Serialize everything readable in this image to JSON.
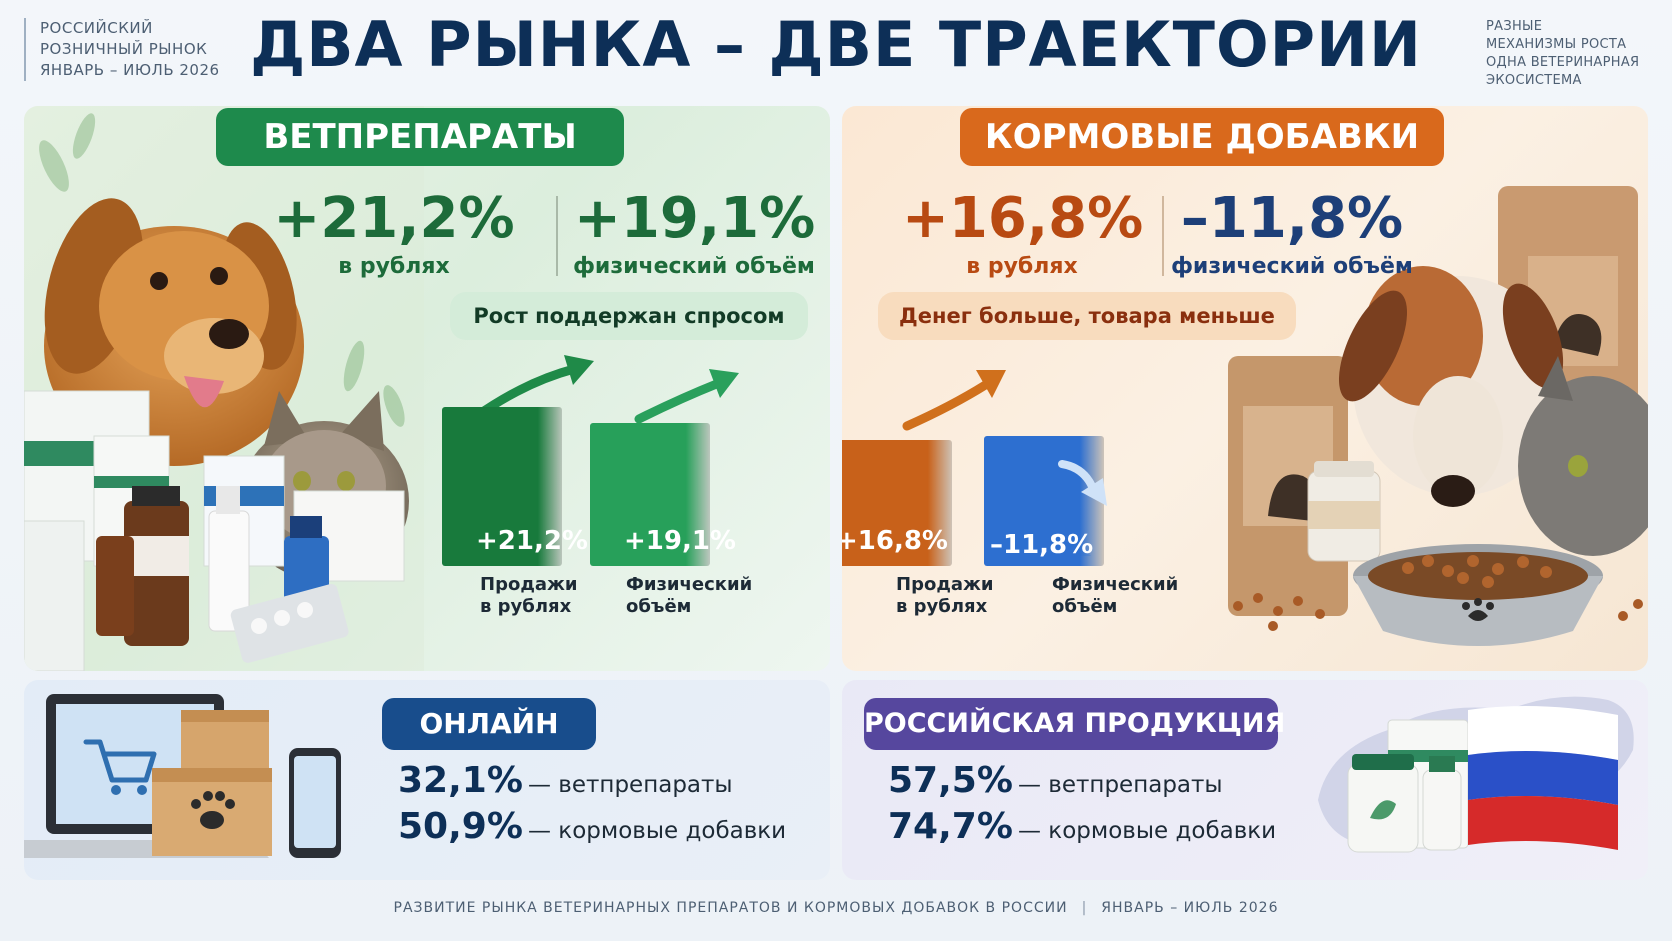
{
  "header": {
    "left_lines": [
      "РОССИЙСКИЙ",
      "РОЗНИЧНЫЙ РЫНОК",
      "ЯНВАРЬ – ИЮЛЬ 2026"
    ],
    "title": "ДВА РЫНКА – ДВЕ ТРАЕКТОРИИ",
    "right_lines": [
      "РАЗНЫЕ",
      "МЕХАНИЗМЫ РОСТА",
      "ОДНА ВЕТЕРИНАРНАЯ",
      "ЭКОСИСТЕМА"
    ]
  },
  "vet": {
    "title": "ВЕТПРЕПАРАТЫ",
    "stat1_value": "+21,2%",
    "stat1_label": "в рублях",
    "stat2_value": "+19,1%",
    "stat2_label": "физический объём",
    "note": "Рост поддержан спросом",
    "bars": [
      {
        "value_label": "+21,2%",
        "value": 21.2,
        "cap1": "Продажи",
        "cap2": "в рублях",
        "trend": "up"
      },
      {
        "value_label": "+19,1%",
        "value": 19.1,
        "cap1": "Физический",
        "cap2": "объём",
        "trend": "up"
      }
    ],
    "colors": {
      "primary": "#1a8a4a",
      "bar1": "#187a3c",
      "bar2": "#27a05a"
    }
  },
  "feed": {
    "title": "КОРМОВЫЕ ДОБАВКИ",
    "stat1_value": "+16,8%",
    "stat1_label": "в рублях",
    "stat2_value": "–11,8%",
    "stat2_label": "физический объём",
    "note": "Денег больше, товара меньше",
    "bars": [
      {
        "value_label": "+16,8%",
        "value": 16.8,
        "cap1": "Продажи",
        "cap2": "в рублях",
        "trend": "up"
      },
      {
        "value_label": "–11,8%",
        "value": -11.8,
        "cap1": "Физический",
        "cap2": "объём",
        "trend": "down"
      }
    ],
    "colors": {
      "primary": "#d9691c",
      "bar1": "#c8611a",
      "bar2": "#2d6fd0"
    }
  },
  "online": {
    "title": "ОНЛАЙН",
    "rows": [
      {
        "pct": "32,1%",
        "label": "— ветпрепараты"
      },
      {
        "pct": "50,9%",
        "label": "— кормовые добавки"
      }
    ]
  },
  "russian": {
    "title": "РОССИЙСКАЯ ПРОДУКЦИЯ",
    "rows": [
      {
        "pct": "57,5%",
        "label": "— ветпрепараты"
      },
      {
        "pct": "74,7%",
        "label": "— кормовые добавки"
      }
    ]
  },
  "footer": {
    "left": "РАЗВИТИЕ РЫНКА ВЕТЕРИНАРНЫХ ПРЕПАРАТОВ И КОРМОВЫХ ДОБАВОК В РОССИИ",
    "separator": "|",
    "right": "ЯНВАРЬ – ИЮЛЬ 2026"
  },
  "icons": [
    "dog-illustration",
    "cat-illustration",
    "medicine-bottles-illustration",
    "feed-bags-illustration",
    "feed-bowl-icon",
    "laptop-cart-icon",
    "parcel-boxes-icon",
    "smartphone-icon",
    "russia-map",
    "russian-flag",
    "trend-up-arrow-icon",
    "trend-down-arrow-icon"
  ]
}
